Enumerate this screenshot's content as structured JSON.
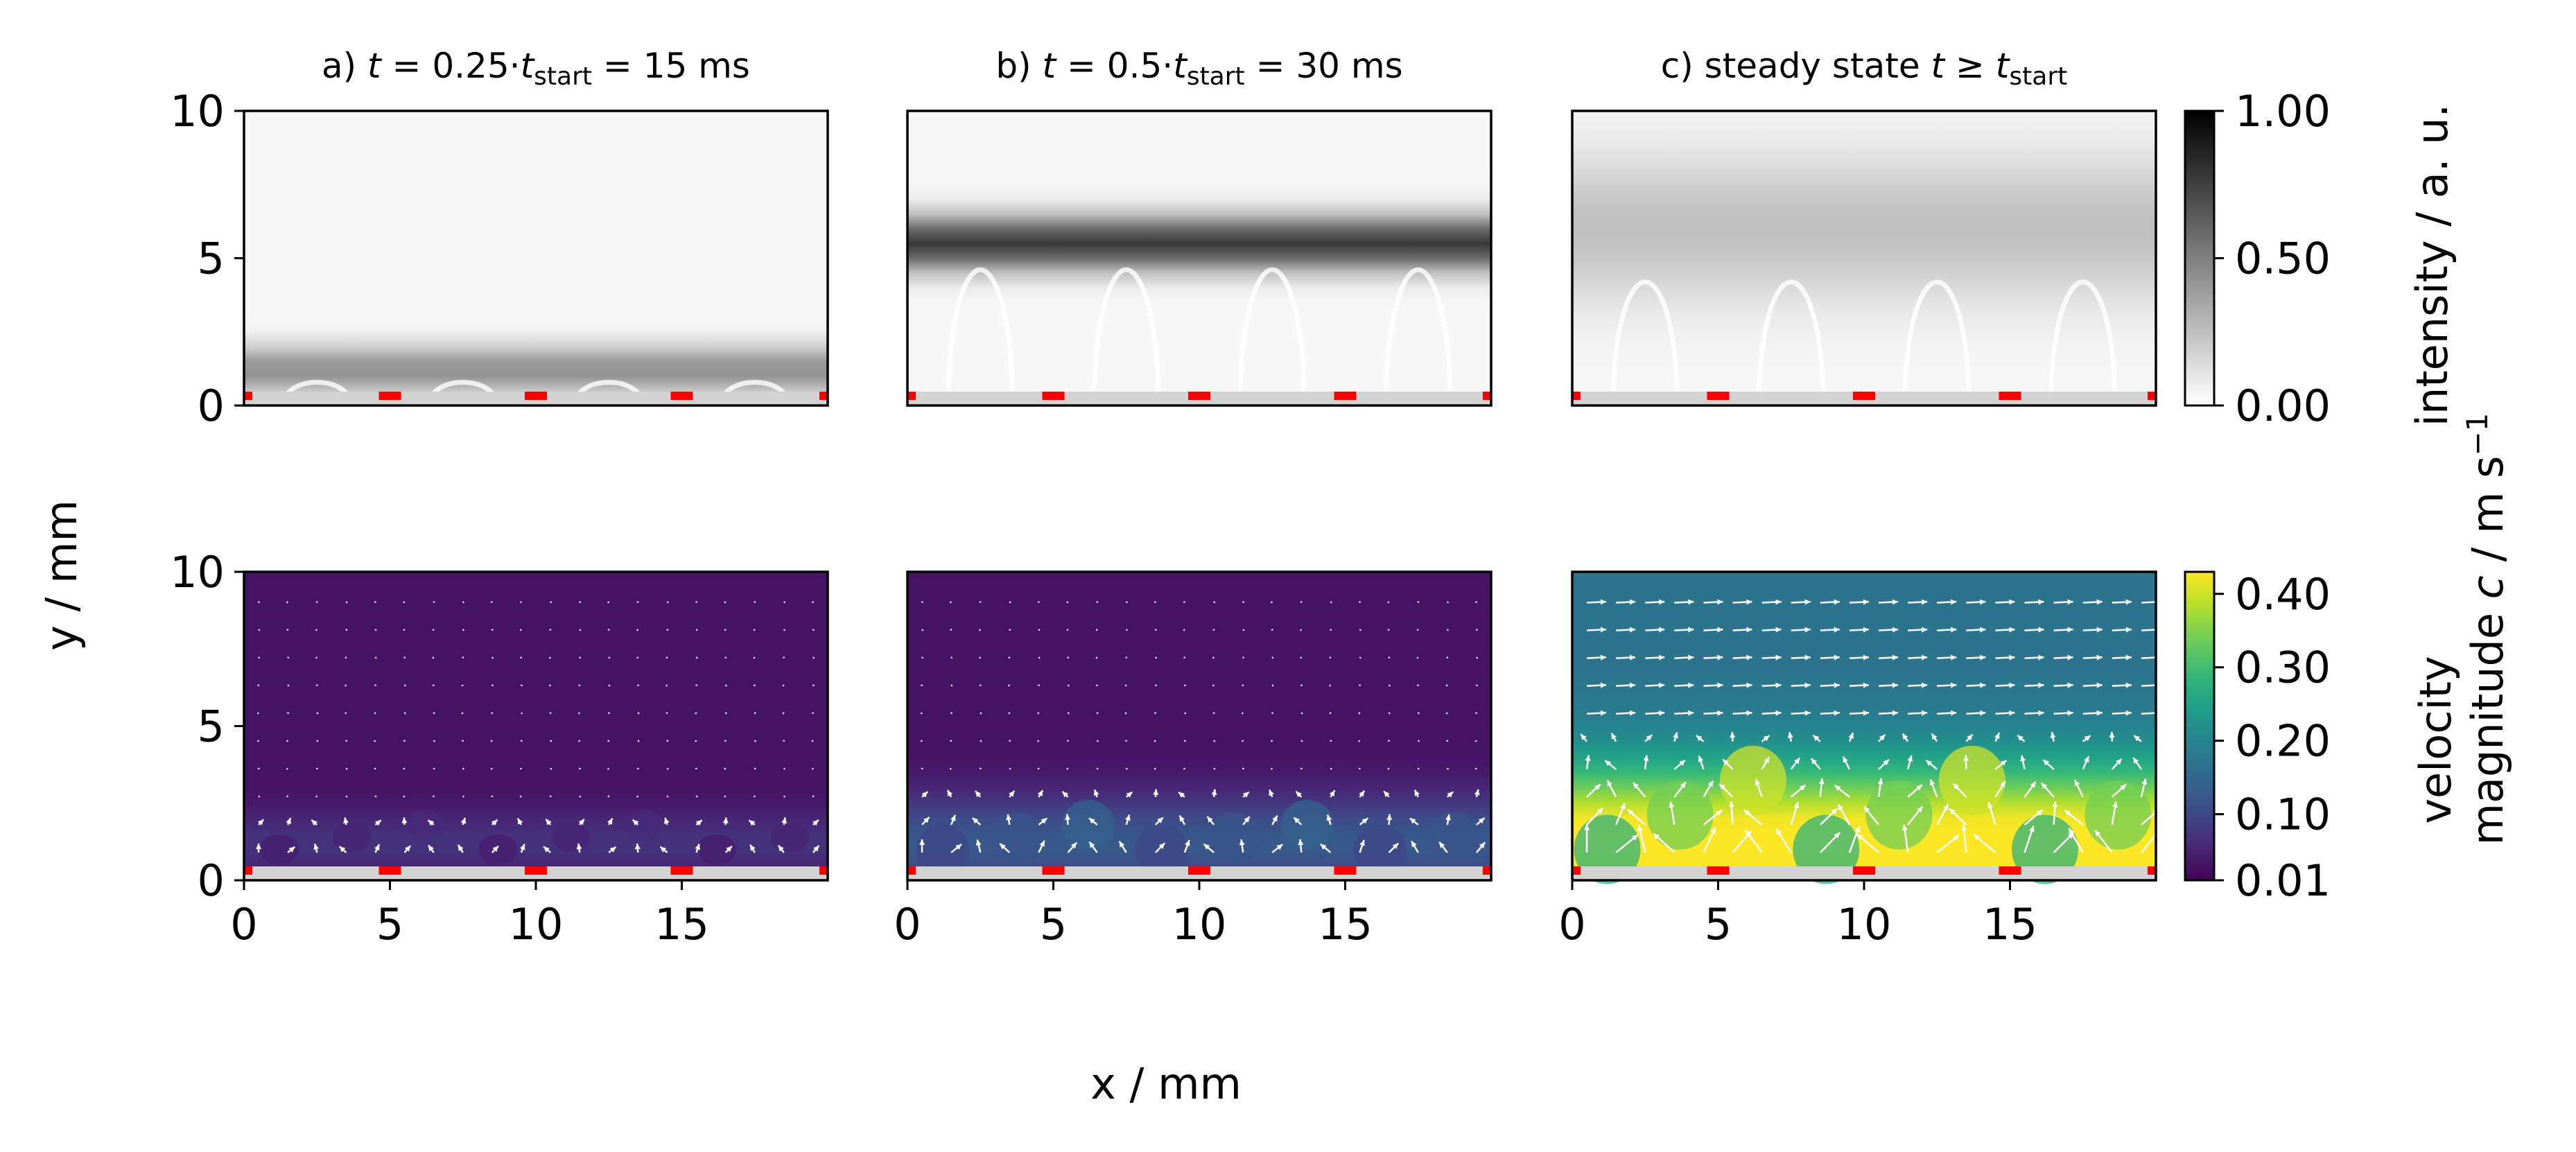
{
  "chart_data": {
    "type": "heatmap",
    "x_label": "x / mm",
    "y_label": "y / mm",
    "xlim": [
      0,
      20
    ],
    "ylim": [
      0,
      10
    ],
    "x_ticks": [
      "0",
      "5",
      "10",
      "15"
    ],
    "y_ticks": [
      "0",
      "5",
      "10"
    ],
    "electrode_x_positions_mm": [
      0,
      5,
      10,
      15,
      20
    ],
    "panels": [
      {
        "id": "a",
        "title_prefix": "a) ",
        "title_t": "t",
        "title_mid": " = 0.25·",
        "title_sub": "start",
        "title_suffix": " = 15 ms",
        "band_peak_y_mm": 1.2,
        "band_amplitude": 0.42,
        "band_width_mm": 0.8,
        "velocity_peak_m_s": 0.06,
        "velocity_layer_height_mm": 2.0
      },
      {
        "id": "b",
        "title_prefix": "b) ",
        "title_t": "t",
        "title_mid": " = 0.5·",
        "title_sub": "start",
        "title_suffix": " = 30 ms",
        "band_peak_y_mm": 5.5,
        "band_amplitude": 0.75,
        "band_width_mm": 0.9,
        "velocity_peak_m_s": 0.14,
        "velocity_layer_height_mm": 3.0
      },
      {
        "id": "c",
        "title_prefix": "c) steady state ",
        "title_t": "t",
        "title_mid": " ≥  ",
        "title_sub": "start",
        "title_suffix": "",
        "band_peak_y_mm": 6.0,
        "band_amplitude": 0.22,
        "band_width_mm": 2.5,
        "velocity_peak_m_s": 0.4,
        "velocity_layer_height_mm": 5.0
      }
    ],
    "colorbars": [
      {
        "name": "intensity",
        "label": "intensity / a. u.",
        "colormap": "gray_r",
        "range": [
          0.0,
          1.0
        ],
        "ticks": [
          "1.00",
          "0.50",
          "0.00"
        ],
        "tick_values": [
          1.0,
          0.5,
          0.0
        ]
      },
      {
        "name": "velocity",
        "label_line1": "velocity",
        "label_line2_prefix": "magnitude ",
        "label_line2_c": "c",
        "label_line2_suffix": " / m s",
        "label_line2_sup": "−1",
        "colormap": "viridis",
        "range": [
          0.01,
          0.43
        ],
        "ticks": [
          "0.40",
          "0.30",
          "0.20",
          "0.10",
          "0.01"
        ],
        "tick_values": [
          0.4,
          0.3,
          0.2,
          0.1,
          0.01
        ]
      }
    ],
    "colors": {
      "electrode": "#ff0000",
      "substrate": "#d3d3d3",
      "vectors": "#ffffff"
    }
  }
}
